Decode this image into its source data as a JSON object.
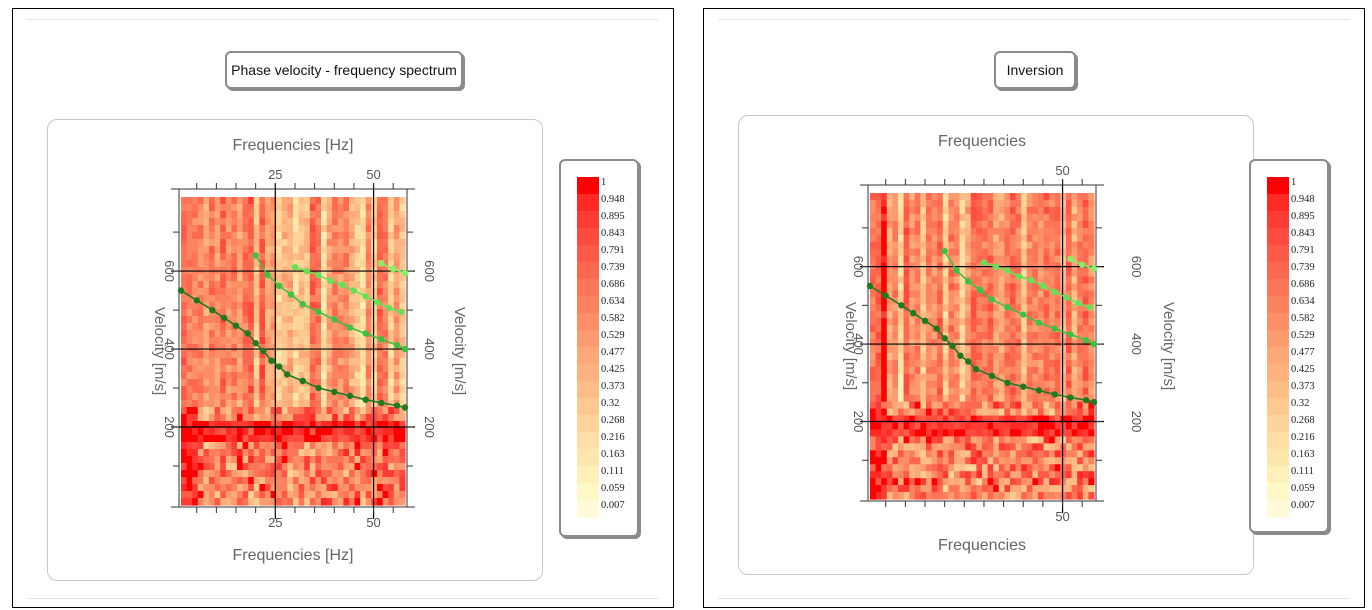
{
  "chart_data": [
    {
      "type": "heatmap",
      "title": "Phase velocity - frequency spectrum",
      "xlabel_top": "Frequencies [Hz]",
      "xlabel_bottom": "Frequencies [Hz]",
      "ylabel_left": "Velocity [m/s]",
      "ylabel_right": "Velocity [m/s]",
      "x_ticks": [
        "25",
        "50"
      ],
      "y_ticks": [
        "200",
        "400",
        "600"
      ],
      "xlim": [
        1,
        58
      ],
      "ylim": [
        0,
        790
      ],
      "grid": true,
      "colorbar": {
        "labels": [
          "1",
          "0.948",
          "0.895",
          "0.843",
          "0.791",
          "0.739",
          "0.686",
          "0.634",
          "0.582",
          "0.529",
          "0.477",
          "0.425",
          "0.373",
          "0.32",
          "0.268",
          "0.216",
          "0.163",
          "0.111",
          "0.059",
          "0.007"
        ],
        "colors": [
          "#ff0000",
          "#ff2a25",
          "#fd3c35",
          "#fd4c3f",
          "#fd5a48",
          "#fd6850",
          "#fd7558",
          "#fd8260",
          "#fd8f67",
          "#fd9b70",
          "#fda877",
          "#fdb27f",
          "#fdbd87",
          "#fdc990",
          "#fdd49a",
          "#fddea4",
          "#fde7ad",
          "#fef0b8",
          "#fef7c6",
          "#fffbd8"
        ],
        "placement": "right"
      },
      "series": [
        {
          "values": [
            [
              1,
              550
            ],
            [
              5,
              525
            ],
            [
              9,
              500
            ],
            [
              12,
              480
            ],
            [
              15,
              460
            ],
            [
              18,
              440
            ],
            [
              20,
              415
            ],
            [
              22,
              395
            ],
            [
              24,
              370
            ],
            [
              26,
              355
            ],
            [
              28,
              335
            ],
            [
              32,
              318
            ],
            [
              36,
              300
            ],
            [
              40,
              290
            ],
            [
              44,
              280
            ],
            [
              48,
              270
            ],
            [
              52,
              262
            ],
            [
              56,
              255
            ],
            [
              58,
              250
            ]
          ],
          "color": "#1f7a1f"
        },
        {
          "values": [
            [
              20,
              640
            ],
            [
              23,
              590
            ],
            [
              26,
              562
            ],
            [
              29,
              540
            ],
            [
              32,
              515
            ],
            [
              36,
              495
            ],
            [
              40,
              476
            ],
            [
              44,
              455
            ],
            [
              48,
              440
            ],
            [
              52,
              425
            ],
            [
              56,
              410
            ],
            [
              58,
              400
            ]
          ],
          "color": "#3ec13e"
        },
        {
          "values": [
            [
              30,
              610
            ],
            [
              33,
              600
            ],
            [
              36,
              590
            ],
            [
              39,
              575
            ],
            [
              42,
              565
            ],
            [
              45,
              550
            ],
            [
              48,
              535
            ],
            [
              51,
              520
            ],
            [
              54,
              505
            ],
            [
              57,
              495
            ]
          ],
          "color": "#66e055"
        },
        {
          "values": [
            [
              52,
              620
            ],
            [
              55,
              605
            ],
            [
              58,
              595
            ]
          ],
          "color": "#88ee66"
        }
      ]
    },
    {
      "type": "heatmap",
      "title": "Inversion",
      "xlabel_top": "Frequencies",
      "xlabel_bottom": "Frequencies",
      "ylabel_left": "Velocity [m/s]",
      "ylabel_right": "Velocity [m/s]",
      "x_ticks": [
        "50"
      ],
      "y_ticks": [
        "200",
        "400",
        "600"
      ],
      "xlim": [
        1,
        58
      ],
      "ylim": [
        0,
        790
      ],
      "grid": true,
      "colorbar": {
        "labels": [
          "1",
          "0.948",
          "0.895",
          "0.843",
          "0.791",
          "0.739",
          "0.686",
          "0.634",
          "0.582",
          "0.529",
          "0.477",
          "0.425",
          "0.373",
          "0.32",
          "0.268",
          "0.216",
          "0.163",
          "0.111",
          "0.059",
          "0.007"
        ],
        "colors": [
          "#ff0000",
          "#ff2a25",
          "#fd3c35",
          "#fd4c3f",
          "#fd5a48",
          "#fd6850",
          "#fd7558",
          "#fd8260",
          "#fd8f67",
          "#fd9b70",
          "#fda877",
          "#fdb27f",
          "#fdbd87",
          "#fdc990",
          "#fdd49a",
          "#fddea4",
          "#fde7ad",
          "#fef0b8",
          "#fef7c6",
          "#fffbd8"
        ],
        "placement": "right"
      },
      "series": [
        {
          "values": [
            [
              1,
              550
            ],
            [
              5,
              525
            ],
            [
              9,
              500
            ],
            [
              12,
              480
            ],
            [
              15,
              460
            ],
            [
              18,
              440
            ],
            [
              20,
              415
            ],
            [
              22,
              395
            ],
            [
              24,
              370
            ],
            [
              26,
              355
            ],
            [
              28,
              335
            ],
            [
              32,
              318
            ],
            [
              36,
              300
            ],
            [
              40,
              290
            ],
            [
              44,
              280
            ],
            [
              48,
              270
            ],
            [
              52,
              262
            ],
            [
              56,
              255
            ],
            [
              58,
              250
            ]
          ],
          "color": "#1f7a1f"
        },
        {
          "values": [
            [
              20,
              640
            ],
            [
              23,
              590
            ],
            [
              26,
              562
            ],
            [
              29,
              540
            ],
            [
              32,
              515
            ],
            [
              36,
              495
            ],
            [
              40,
              476
            ],
            [
              44,
              455
            ],
            [
              48,
              440
            ],
            [
              52,
              425
            ],
            [
              56,
              410
            ],
            [
              58,
              400
            ]
          ],
          "color": "#3ec13e"
        },
        {
          "values": [
            [
              30,
              610
            ],
            [
              33,
              600
            ],
            [
              36,
              590
            ],
            [
              39,
              575
            ],
            [
              42,
              565
            ],
            [
              45,
              550
            ],
            [
              48,
              535
            ],
            [
              51,
              520
            ],
            [
              54,
              505
            ],
            [
              57,
              495
            ]
          ],
          "color": "#66e055"
        },
        {
          "values": [
            [
              52,
              620
            ],
            [
              55,
              605
            ],
            [
              58,
              595
            ]
          ],
          "color": "#88ee66"
        }
      ]
    }
  ]
}
